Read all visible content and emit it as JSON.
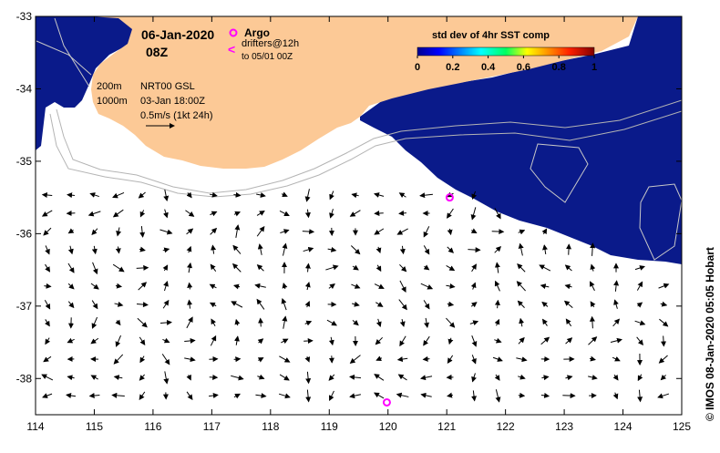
{
  "header": {
    "date": "06-Jan-2020",
    "time": "08Z"
  },
  "legend": {
    "argo_label": "Argo",
    "drifters_label": "drifters@12h",
    "drifters_sub": "to 05/01 00Z",
    "contour_200": "200m",
    "contour_1000": "1000m",
    "altimetry_product": "NRT00 GSL",
    "altimetry_time": "03-Jan 18:00Z",
    "arrow_scale": "0.5m/s (1kt 24h)"
  },
  "colorbar": {
    "title": "std dev of 4hr SST comp",
    "ticks": [
      "0",
      "0.2",
      "0.4",
      "0.6",
      "0.8",
      "1"
    ],
    "range": [
      0,
      1
    ]
  },
  "axes": {
    "x_ticks": [
      "114",
      "115",
      "116",
      "117",
      "118",
      "119",
      "120",
      "121",
      "122",
      "123",
      "124",
      "125"
    ],
    "y_ticks": [
      "-33",
      "-34",
      "-35",
      "-36",
      "-37",
      "-38"
    ],
    "lon_range": [
      114,
      125
    ],
    "lat_range": [
      -38.5,
      -33
    ]
  },
  "credit": "© IMOS 08-Jan-2020 05:05 Hobart",
  "argo_floats": [
    {
      "lon": 121.05,
      "lat": -35.5
    },
    {
      "lon": 119.98,
      "lat": -38.33
    }
  ],
  "colors": {
    "land": "#fcc996",
    "sst_low": "#0a1a8a",
    "ocean_white": "#ffffff",
    "argo": "#ff00ff",
    "contour": "#b4b4b4",
    "vector": "#000000"
  }
}
